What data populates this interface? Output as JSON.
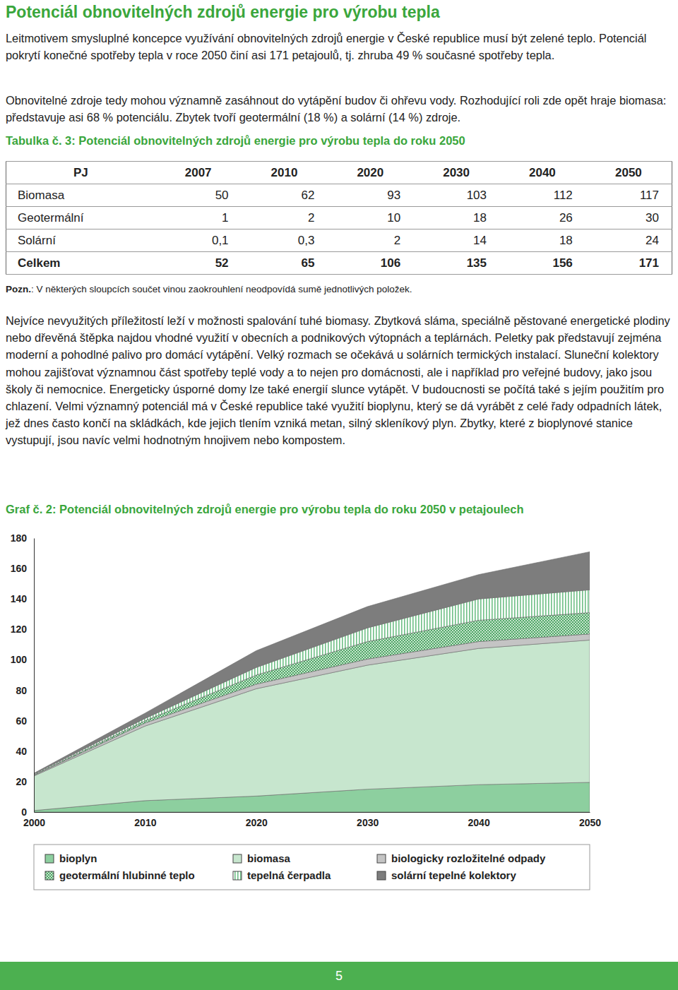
{
  "header": {
    "title": "Potenciál obnovitelných zdrojů energie pro výrobu tepla"
  },
  "paragraphs": [
    "Leitmotivem smysluplné koncepce využívání obnovitelných zdrojů energie v České republice musí být zelené teplo. Potenciál pokrytí konečné spotřeby tepla v roce 2050 činí asi 171 petajoulů, tj. zhruba 49 % současné spotřeby tepla.",
    "Obnovitelné zdroje tedy mohou významně zasáhnout do vytápění budov či ohřevu vody. Rozhodující roli zde opět hraje biomasa: představuje asi 68 % potenciálu. Zbytek tvoří geotermální (18 %) a solární (14 %) zdroje.",
    "Nejvíce nevyužitých příležitostí leží v možnosti spalování tuhé biomasy. Zbytková sláma, speciálně pěstované energetické plodiny nebo dřevěná štěpka najdou vhodné využití v obecních a podnikových výtopnách a teplárnách. Peletky pak představují zejména moderní a pohodlné palivo pro domácí vytápění. Velký rozmach se očekává u solárních termických instalací. Sluneční kolektory mohou zajišťovat významnou část spotřeby teplé vody a to nejen pro domácnosti, ale i například pro veřejné budovy, jako jsou školy či nemocnice. Energeticky úsporné domy lze také energií slunce vytápět. V budoucnosti se počítá také s jejím použitím pro chlazení. Velmi významný potenciál má v České republice také využití bioplynu, který se dá vyrábět z celé řady odpadních látek, jež dnes často končí na skládkách, kde jejich tlením vzniká metan, silný skleníkový plyn. Zbytky, které z bioplynové stanice vystupují, jsou navíc velmi hodnotným hnojivem nebo kompostem."
  ],
  "table": {
    "caption": "Tabulka č. 3: Potenciál obnovitelných zdrojů energie pro výrobu tepla do roku 2050",
    "header": [
      "PJ",
      "2007",
      "2010",
      "2020",
      "2030",
      "2040",
      "2050"
    ],
    "rows": [
      [
        "Biomasa",
        "50",
        "62",
        "93",
        "103",
        "112",
        "117"
      ],
      [
        "Geotermální",
        "1",
        "2",
        "10",
        "18",
        "26",
        "30"
      ],
      [
        "Solární",
        "0,1",
        "0,3",
        "2",
        "14",
        "18",
        "24"
      ],
      [
        "Celkem",
        "52",
        "65",
        "106",
        "135",
        "156",
        "171"
      ]
    ],
    "note": {
      "label": "Pozn.",
      "text": ": V některých sloupcích součet vinou zaokrouhlení neodpovídá sumě jednotlivých položek."
    }
  },
  "chart_data": {
    "type": "area",
    "stacked": true,
    "title": "Graf č. 2: Potenciál obnovitelných zdrojů energie pro výrobu tepla do roku 2050 v petajoulech",
    "x": [
      2000,
      2010,
      2020,
      2030,
      2040,
      2050
    ],
    "xlim": [
      2000,
      2050
    ],
    "xticks": [
      2000,
      2010,
      2020,
      2030,
      2040,
      2050
    ],
    "ylim": [
      0,
      180
    ],
    "yticks": [
      0,
      20,
      40,
      60,
      80,
      100,
      120,
      140,
      160,
      180
    ],
    "grid": false,
    "legend": "bottom",
    "series": [
      {
        "name": "bioplyn",
        "color": "#8dcf9f",
        "values": [
          1,
          7.5,
          10.5,
          15,
          18,
          19.5
        ]
      },
      {
        "name": "biomasa",
        "color": "#c7e6ce",
        "values": [
          22.7,
          49,
          70.5,
          81.5,
          89.5,
          93.5
        ]
      },
      {
        "name": "biologicky rozložitelné odpady",
        "color": "#c4c4c4",
        "values": [
          0.5,
          2,
          3,
          4,
          4.5,
          4
        ]
      },
      {
        "name": "geotermální hlubinné teplo",
        "color": "#4fa866",
        "values": [
          0.3,
          1.5,
          6,
          11.5,
          14,
          14
        ]
      },
      {
        "name": "tepelná čerpadla",
        "color": "#6fbf86",
        "values": [
          0.5,
          1.5,
          5,
          9,
          14,
          15
        ]
      },
      {
        "name": "solární tepelné kolektory",
        "color": "#7d7d7d",
        "values": [
          0.5,
          3.5,
          11,
          14,
          16,
          25
        ]
      }
    ]
  },
  "footer": {
    "page_number": "5"
  }
}
